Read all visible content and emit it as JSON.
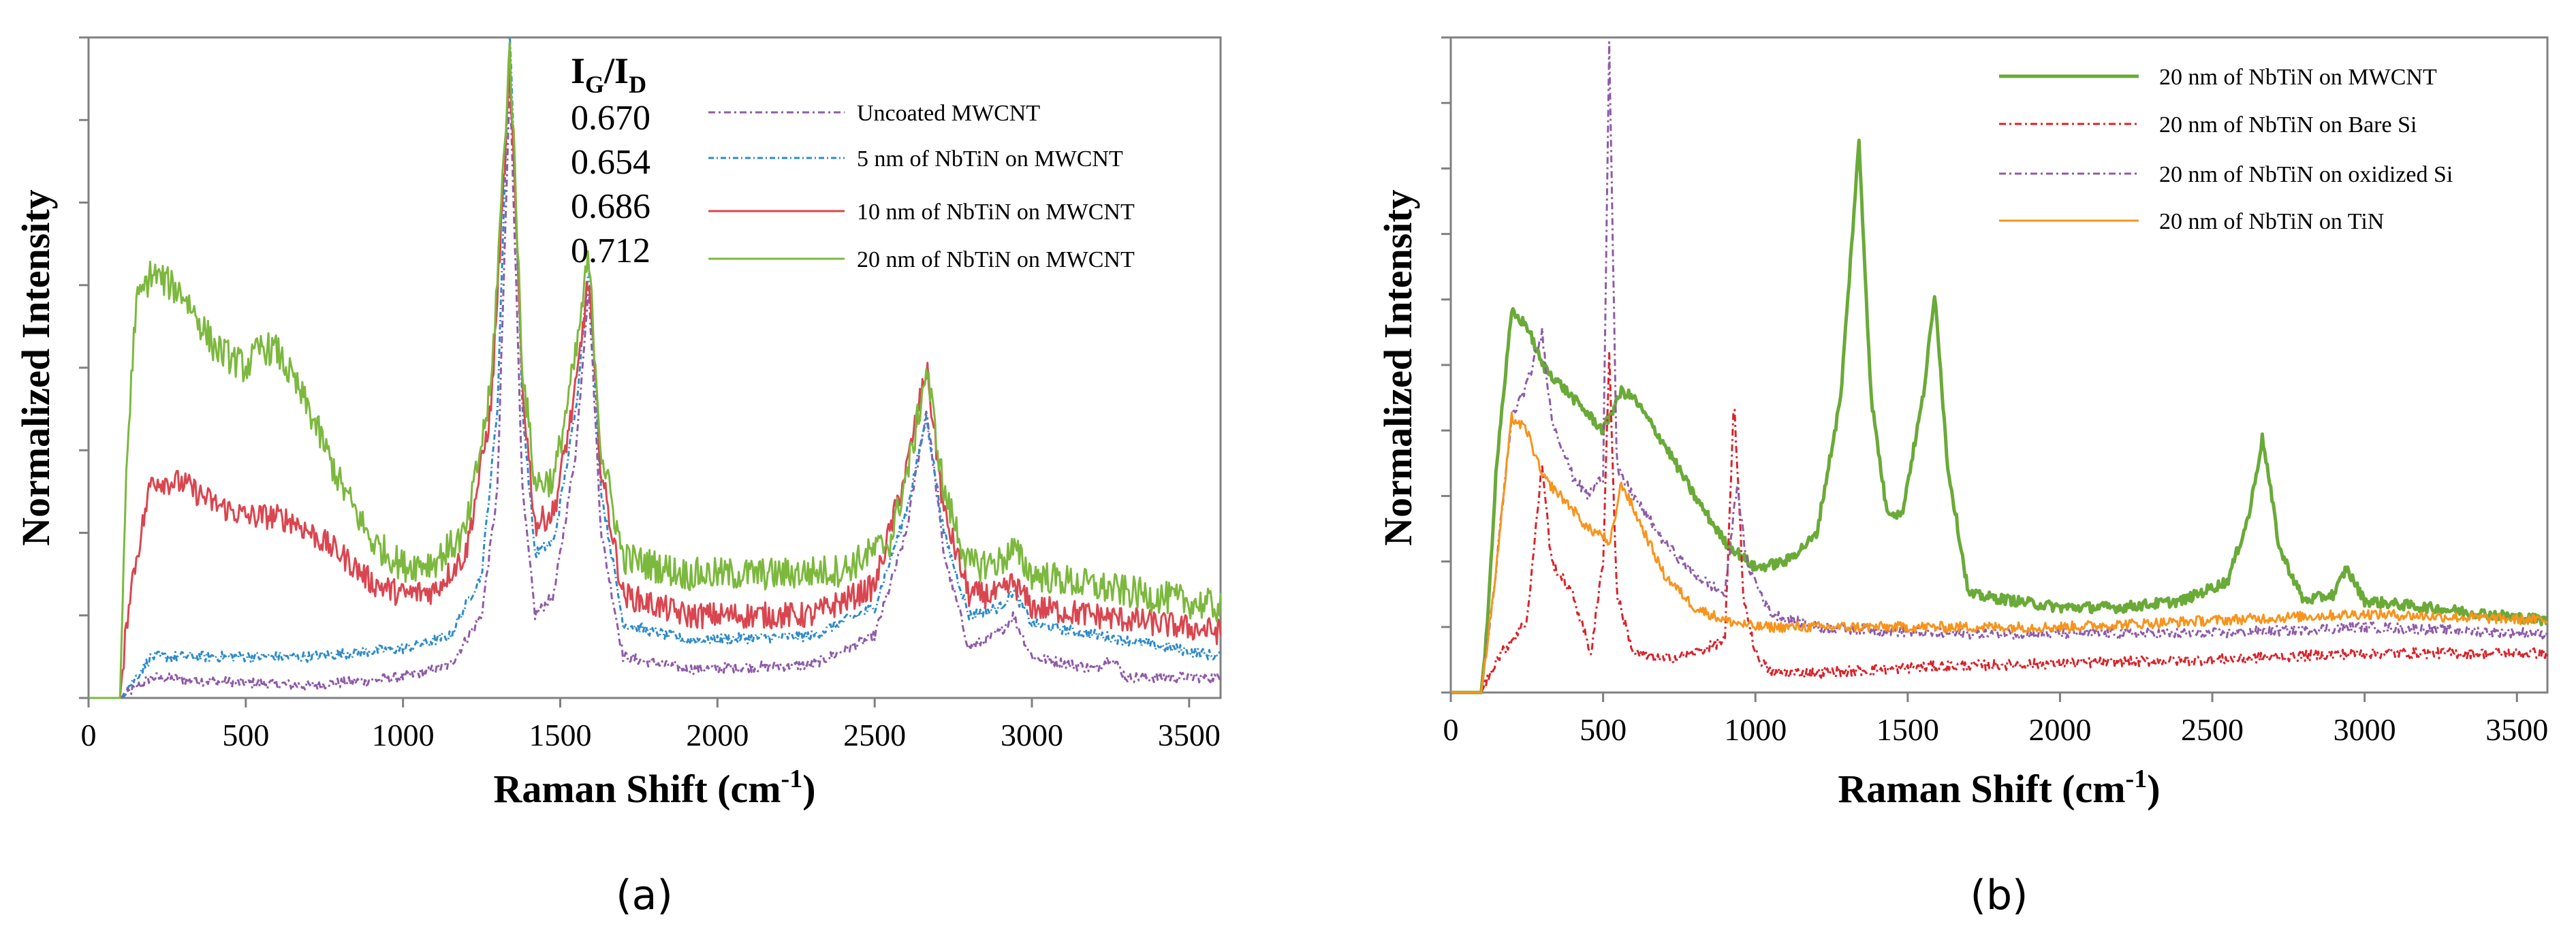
{
  "figure": {
    "caption_a": "(a)",
    "caption_b": "(b)"
  },
  "chart_data": [
    {
      "type": "line",
      "id": "a",
      "title": "",
      "xlabel": "Raman Shift (cm-1)",
      "xlabel_parts": [
        "Raman Shift (cm",
        "-1",
        ")"
      ],
      "ylabel": "Normalized Intensity",
      "xlim": [
        0,
        3600
      ],
      "ylim": [
        0,
        1.6
      ],
      "x_ticks": [
        0,
        500,
        1000,
        1500,
        2000,
        2500,
        3000,
        3500
      ],
      "y_tick_count": 8,
      "grid": false,
      "legend_position": "top-right",
      "ratio_header": "IG/ID",
      "ratio_header_parts": [
        "I",
        "G",
        "/I",
        "D"
      ],
      "ratios": [
        "0.670",
        "0.654",
        "0.686",
        "0.712"
      ],
      "series": [
        {
          "name": "Uncoated MWCNT",
          "color": "#8e5ba8",
          "dash": "10,5,3,5",
          "noise": 0.008,
          "base": [
            [
              100,
              0
            ],
            [
              140,
              0.02
            ],
            [
              200,
              0.05
            ],
            [
              400,
              0.04
            ],
            [
              700,
              0.03
            ],
            [
              1000,
              0.05
            ],
            [
              1150,
              0.08
            ],
            [
              1250,
              0.2
            ],
            [
              1300,
              0.5
            ],
            [
              1340,
              1.5
            ],
            [
              1380,
              0.5
            ],
            [
              1420,
              0.2
            ],
            [
              1480,
              0.25
            ],
            [
              1550,
              0.6
            ],
            [
              1590,
              1.0
            ],
            [
              1630,
              0.4
            ],
            [
              1700,
              0.1
            ],
            [
              1900,
              0.07
            ],
            [
              2300,
              0.08
            ],
            [
              2500,
              0.15
            ],
            [
              2600,
              0.4
            ],
            [
              2665,
              0.7
            ],
            [
              2720,
              0.35
            ],
            [
              2800,
              0.12
            ],
            [
              2900,
              0.16
            ],
            [
              2940,
              0.2
            ],
            [
              3000,
              0.1
            ],
            [
              3200,
              0.07
            ],
            [
              3250,
              0.1
            ],
            [
              3300,
              0.05
            ],
            [
              3600,
              0.05
            ]
          ]
        },
        {
          "name": "5 nm of NbTiN on MWCNT",
          "color": "#2e8bc9",
          "dash": "8,4,2,4",
          "noise": 0.008,
          "base": [
            [
              100,
              0
            ],
            [
              140,
              0.04
            ],
            [
              200,
              0.1
            ],
            [
              400,
              0.1
            ],
            [
              700,
              0.1
            ],
            [
              1000,
              0.12
            ],
            [
              1150,
              0.15
            ],
            [
              1250,
              0.3
            ],
            [
              1300,
              0.7
            ],
            [
              1340,
              1.63
            ],
            [
              1380,
              0.7
            ],
            [
              1420,
              0.35
            ],
            [
              1480,
              0.38
            ],
            [
              1550,
              0.7
            ],
            [
              1590,
              1.05
            ],
            [
              1630,
              0.5
            ],
            [
              1700,
              0.18
            ],
            [
              1900,
              0.14
            ],
            [
              2300,
              0.15
            ],
            [
              2500,
              0.22
            ],
            [
              2600,
              0.45
            ],
            [
              2665,
              0.68
            ],
            [
              2720,
              0.4
            ],
            [
              2800,
              0.2
            ],
            [
              2900,
              0.22
            ],
            [
              2940,
              0.26
            ],
            [
              3000,
              0.18
            ],
            [
              3600,
              0.1
            ]
          ]
        },
        {
          "name": "10 nm of NbTiN on MWCNT",
          "color": "#d9464f",
          "dash": "",
          "noise": 0.02,
          "base": [
            [
              100,
              0
            ],
            [
              130,
              0.25
            ],
            [
              200,
              0.53
            ],
            [
              300,
              0.52
            ],
            [
              400,
              0.47
            ],
            [
              500,
              0.44
            ],
            [
              580,
              0.44
            ],
            [
              650,
              0.43
            ],
            [
              800,
              0.35
            ],
            [
              900,
              0.28
            ],
            [
              1000,
              0.25
            ],
            [
              1100,
              0.26
            ],
            [
              1200,
              0.35
            ],
            [
              1280,
              0.7
            ],
            [
              1340,
              1.52
            ],
            [
              1380,
              0.75
            ],
            [
              1420,
              0.42
            ],
            [
              1480,
              0.45
            ],
            [
              1550,
              0.75
            ],
            [
              1590,
              1.02
            ],
            [
              1630,
              0.55
            ],
            [
              1700,
              0.25
            ],
            [
              1900,
              0.2
            ],
            [
              2300,
              0.2
            ],
            [
              2500,
              0.27
            ],
            [
              2600,
              0.55
            ],
            [
              2665,
              0.8
            ],
            [
              2720,
              0.45
            ],
            [
              2800,
              0.25
            ],
            [
              2900,
              0.25
            ],
            [
              2940,
              0.28
            ],
            [
              3000,
              0.22
            ],
            [
              3200,
              0.2
            ],
            [
              3600,
              0.16
            ]
          ]
        },
        {
          "name": "20 nm of NbTiN on MWCNT",
          "color": "#7cb83e",
          "dash": "",
          "noise": 0.025,
          "base": [
            [
              100,
              0
            ],
            [
              120,
              0.55
            ],
            [
              150,
              0.95
            ],
            [
              200,
              1.03
            ],
            [
              300,
              0.98
            ],
            [
              400,
              0.85
            ],
            [
              500,
              0.8
            ],
            [
              550,
              0.85
            ],
            [
              600,
              0.84
            ],
            [
              700,
              0.7
            ],
            [
              800,
              0.52
            ],
            [
              900,
              0.38
            ],
            [
              1000,
              0.32
            ],
            [
              1100,
              0.33
            ],
            [
              1200,
              0.4
            ],
            [
              1280,
              0.75
            ],
            [
              1340,
              1.58
            ],
            [
              1380,
              0.8
            ],
            [
              1420,
              0.52
            ],
            [
              1480,
              0.53
            ],
            [
              1550,
              0.83
            ],
            [
              1590,
              1.07
            ],
            [
              1630,
              0.6
            ],
            [
              1700,
              0.34
            ],
            [
              1900,
              0.3
            ],
            [
              2200,
              0.3
            ],
            [
              2400,
              0.31
            ],
            [
              2550,
              0.38
            ],
            [
              2620,
              0.6
            ],
            [
              2665,
              0.8
            ],
            [
              2720,
              0.5
            ],
            [
              2800,
              0.32
            ],
            [
              2900,
              0.33
            ],
            [
              2940,
              0.36
            ],
            [
              3000,
              0.3
            ],
            [
              3200,
              0.27
            ],
            [
              3600,
              0.22
            ]
          ]
        }
      ]
    },
    {
      "type": "line",
      "id": "b",
      "title": "",
      "xlabel": "Raman Shift (cm-1)",
      "xlabel_parts": [
        "Raman Shift (cm",
        "-1",
        ")"
      ],
      "ylabel": "Normalized Intensity",
      "xlim": [
        0,
        3600
      ],
      "ylim": [
        0,
        1.0
      ],
      "x_ticks": [
        0,
        500,
        1000,
        1500,
        2000,
        2500,
        3000,
        3500
      ],
      "y_tick_count": 10,
      "grid": false,
      "legend_position": "top-right",
      "series": [
        {
          "name": "20 nm of NbTiN on MWCNT",
          "color": "#6aaa38",
          "dash": "",
          "width": 5,
          "noise": 0.008,
          "base": [
            [
              100,
              0
            ],
            [
              120,
              0.1
            ],
            [
              150,
              0.35
            ],
            [
              200,
              0.58
            ],
            [
              250,
              0.56
            ],
            [
              300,
              0.5
            ],
            [
              400,
              0.45
            ],
            [
              500,
              0.4
            ],
            [
              560,
              0.46
            ],
            [
              600,
              0.45
            ],
            [
              700,
              0.38
            ],
            [
              800,
              0.3
            ],
            [
              900,
              0.23
            ],
            [
              1000,
              0.19
            ],
            [
              1100,
              0.2
            ],
            [
              1200,
              0.24
            ],
            [
              1280,
              0.45
            ],
            [
              1340,
              0.84
            ],
            [
              1380,
              0.45
            ],
            [
              1430,
              0.28
            ],
            [
              1480,
              0.27
            ],
            [
              1550,
              0.45
            ],
            [
              1590,
              0.61
            ],
            [
              1630,
              0.35
            ],
            [
              1700,
              0.15
            ],
            [
              2000,
              0.13
            ],
            [
              2200,
              0.13
            ],
            [
              2400,
              0.14
            ],
            [
              2550,
              0.17
            ],
            [
              2620,
              0.27
            ],
            [
              2665,
              0.39
            ],
            [
              2720,
              0.22
            ],
            [
              2800,
              0.14
            ],
            [
              2900,
              0.15
            ],
            [
              2940,
              0.19
            ],
            [
              3000,
              0.14
            ],
            [
              3600,
              0.11
            ]
          ]
        },
        {
          "name": "20 nm of NbTiN on Bare Si",
          "color": "#d8232a",
          "dash": "10,5,3,5",
          "noise": 0.008,
          "base": [
            [
              100,
              0
            ],
            [
              150,
              0.05
            ],
            [
              200,
              0.08
            ],
            [
              250,
              0.11
            ],
            [
              300,
              0.35
            ],
            [
              330,
              0.2
            ],
            [
              400,
              0.15
            ],
            [
              460,
              0.06
            ],
            [
              500,
              0.2
            ],
            [
              520,
              0.52
            ],
            [
              545,
              0.15
            ],
            [
              600,
              0.06
            ],
            [
              700,
              0.05
            ],
            [
              800,
              0.06
            ],
            [
              900,
              0.08
            ],
            [
              930,
              0.45
            ],
            [
              960,
              0.15
            ],
            [
              1000,
              0.06
            ],
            [
              1050,
              0.03
            ],
            [
              1200,
              0.03
            ],
            [
              1600,
              0.04
            ],
            [
              2500,
              0.05
            ],
            [
              3000,
              0.06
            ],
            [
              3600,
              0.06
            ]
          ]
        },
        {
          "name": "20 nm of NbTiN on oxidized Si",
          "color": "#8e5ba8",
          "dash": "10,5,3,5",
          "noise": 0.008,
          "base": [
            [
              100,
              0
            ],
            [
              140,
              0.15
            ],
            [
              200,
              0.42
            ],
            [
              250,
              0.47
            ],
            [
              300,
              0.55
            ],
            [
              330,
              0.42
            ],
            [
              400,
              0.33
            ],
            [
              450,
              0.3
            ],
            [
              500,
              0.33
            ],
            [
              520,
              1.0
            ],
            [
              545,
              0.34
            ],
            [
              600,
              0.3
            ],
            [
              700,
              0.23
            ],
            [
              800,
              0.18
            ],
            [
              900,
              0.15
            ],
            [
              940,
              0.32
            ],
            [
              970,
              0.2
            ],
            [
              1050,
              0.12
            ],
            [
              1200,
              0.1
            ],
            [
              1600,
              0.09
            ],
            [
              2500,
              0.09
            ],
            [
              3000,
              0.1
            ],
            [
              3600,
              0.09
            ]
          ]
        },
        {
          "name": "20 nm of NbTiN on TiN",
          "color": "#f7941d",
          "dash": "",
          "noise": 0.008,
          "base": [
            [
              100,
              0
            ],
            [
              140,
              0.15
            ],
            [
              200,
              0.42
            ],
            [
              250,
              0.4
            ],
            [
              300,
              0.33
            ],
            [
              400,
              0.28
            ],
            [
              450,
              0.25
            ],
            [
              500,
              0.24
            ],
            [
              520,
              0.22
            ],
            [
              560,
              0.32
            ],
            [
              600,
              0.28
            ],
            [
              700,
              0.18
            ],
            [
              800,
              0.13
            ],
            [
              900,
              0.11
            ],
            [
              1000,
              0.1
            ],
            [
              1200,
              0.1
            ],
            [
              1600,
              0.1
            ],
            [
              2000,
              0.1
            ],
            [
              2500,
              0.11
            ],
            [
              3000,
              0.12
            ],
            [
              3600,
              0.11
            ]
          ]
        }
      ]
    }
  ]
}
